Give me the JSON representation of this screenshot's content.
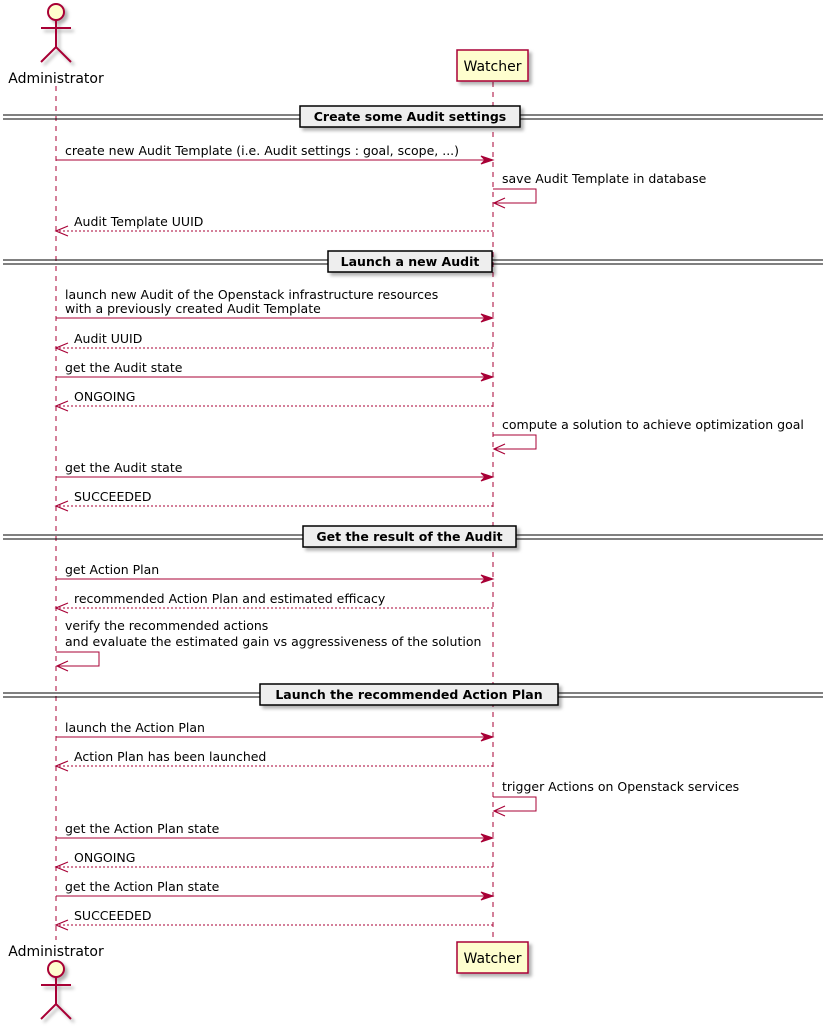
{
  "participants": {
    "actor": {
      "name": "Administrator",
      "icon": "actor-stick-figure-icon"
    },
    "watcher": {
      "name": "Watcher"
    }
  },
  "colors": {
    "line": "#A80036",
    "participant_fill": "#FEFECE",
    "divider_fill": "#EEEEEE"
  },
  "events": [
    {
      "type": "divider",
      "label": "Create some Audit settings"
    },
    {
      "type": "call",
      "from": "actor",
      "to": "watcher",
      "lines": [
        "create new Audit Template (i.e. Audit settings : goal, scope, ...)"
      ]
    },
    {
      "type": "self",
      "on": "watcher",
      "lines": [
        "save Audit Template in database"
      ]
    },
    {
      "type": "return",
      "from": "watcher",
      "to": "actor",
      "lines": [
        "Audit Template UUID"
      ]
    },
    {
      "type": "divider",
      "label": "Launch a new Audit"
    },
    {
      "type": "call",
      "from": "actor",
      "to": "watcher",
      "lines": [
        "launch new Audit of the Openstack infrastructure resources",
        "with a previously created Audit Template"
      ]
    },
    {
      "type": "return",
      "from": "watcher",
      "to": "actor",
      "lines": [
        "Audit UUID"
      ]
    },
    {
      "type": "call",
      "from": "actor",
      "to": "watcher",
      "lines": [
        "get the Audit state"
      ]
    },
    {
      "type": "return",
      "from": "watcher",
      "to": "actor",
      "lines": [
        "ONGOING"
      ]
    },
    {
      "type": "self",
      "on": "watcher",
      "lines": [
        "compute a solution to achieve optimization goal"
      ]
    },
    {
      "type": "call",
      "from": "actor",
      "to": "watcher",
      "lines": [
        "get the Audit state"
      ]
    },
    {
      "type": "return",
      "from": "watcher",
      "to": "actor",
      "lines": [
        "SUCCEEDED"
      ]
    },
    {
      "type": "divider",
      "label": "Get the result of the Audit"
    },
    {
      "type": "call",
      "from": "actor",
      "to": "watcher",
      "lines": [
        "get Action Plan"
      ]
    },
    {
      "type": "return",
      "from": "watcher",
      "to": "actor",
      "lines": [
        "recommended Action Plan and estimated efficacy"
      ]
    },
    {
      "type": "self",
      "on": "actor",
      "lines": [
        "verify the recommended actions",
        "and evaluate the estimated gain vs aggressiveness of the solution"
      ]
    },
    {
      "type": "divider",
      "label": "Launch the recommended Action Plan"
    },
    {
      "type": "call",
      "from": "actor",
      "to": "watcher",
      "lines": [
        "launch the Action Plan"
      ]
    },
    {
      "type": "return",
      "from": "watcher",
      "to": "actor",
      "lines": [
        "Action Plan has been launched"
      ]
    },
    {
      "type": "self",
      "on": "watcher",
      "lines": [
        "trigger Actions on Openstack services"
      ]
    },
    {
      "type": "call",
      "from": "actor",
      "to": "watcher",
      "lines": [
        "get the Action Plan state"
      ]
    },
    {
      "type": "return",
      "from": "watcher",
      "to": "actor",
      "lines": [
        "ONGOING"
      ]
    },
    {
      "type": "call",
      "from": "actor",
      "to": "watcher",
      "lines": [
        "get the Action Plan state"
      ]
    },
    {
      "type": "return",
      "from": "watcher",
      "to": "actor",
      "lines": [
        "SUCCEEDED"
      ]
    }
  ]
}
